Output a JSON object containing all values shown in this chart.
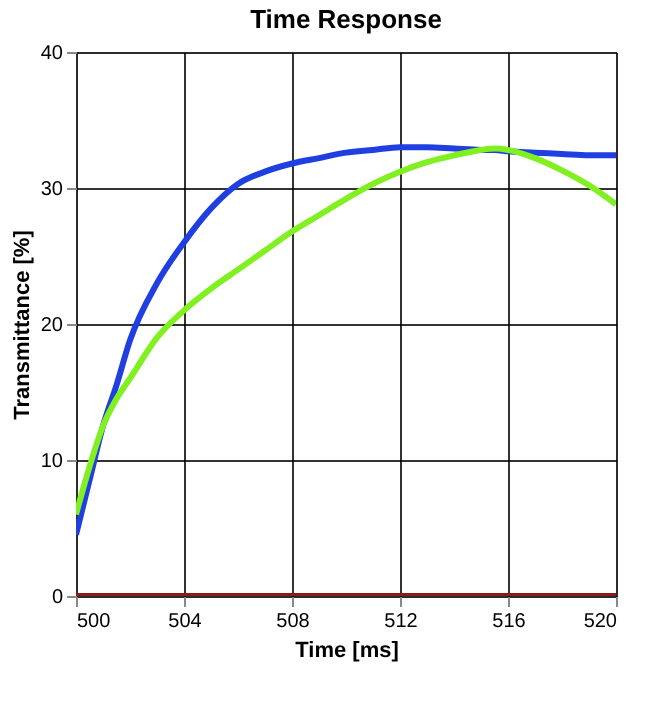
{
  "chart_data": {
    "type": "line",
    "title": "Time Response",
    "xlabel": "Time [ms]",
    "ylabel": "Transmittance [%]",
    "x": [
      500,
      500.5,
      501,
      501.5,
      502,
      503,
      504,
      505,
      506,
      507,
      508,
      509,
      510,
      511,
      512,
      513,
      514,
      515,
      515.5,
      516,
      517,
      518,
      519,
      520
    ],
    "series": [
      {
        "color": "#1f3fe0",
        "values": [
          4.5,
          8.5,
          12.5,
          15.5,
          18.8,
          23,
          26,
          28.5,
          30.3,
          31.2,
          31.8,
          32.2,
          32.6,
          32.8,
          33,
          33,
          32.9,
          32.8,
          32.8,
          32.7,
          32.6,
          32.5,
          32.4,
          32.4
        ]
      },
      {
        "color": "#80f020",
        "values": [
          6,
          9.5,
          12.5,
          14.5,
          16,
          19,
          21,
          22.6,
          24,
          25.4,
          26.8,
          28,
          29.2,
          30.3,
          31.2,
          31.9,
          32.4,
          32.8,
          32.9,
          32.8,
          32.2,
          31.3,
          30.2,
          28.8
        ]
      },
      {
        "color": "#8b1a1a",
        "values": [
          0,
          null,
          null,
          null,
          null,
          null,
          null,
          null,
          null,
          null,
          null,
          null,
          null,
          null,
          null,
          null,
          null,
          null,
          null,
          null,
          null,
          null,
          null,
          0
        ]
      }
    ],
    "xlim": [
      500,
      520
    ],
    "xticks": [
      500,
      504,
      508,
      512,
      516,
      520
    ],
    "ylim": [
      0,
      40
    ],
    "yticks": [
      0,
      10,
      20,
      30,
      40
    ],
    "grid": true,
    "marker": "none",
    "line_style": "solid"
  }
}
